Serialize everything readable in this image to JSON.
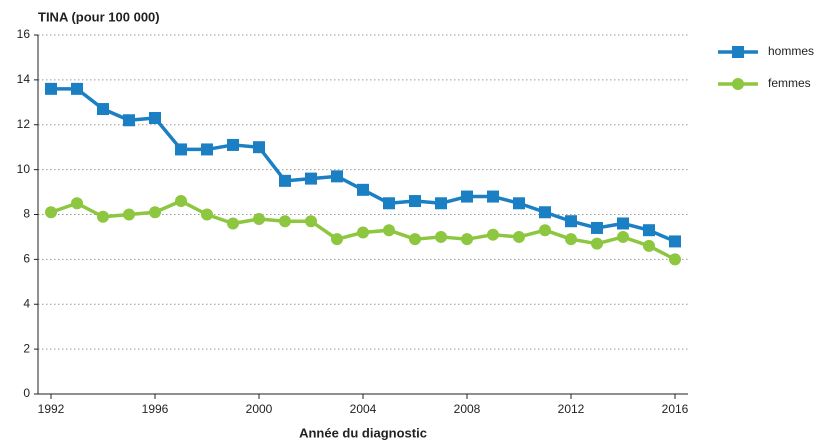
{
  "chart_data": {
    "type": "line",
    "ylabel": "TINA (pour 100 000)",
    "xlabel": "Année du diagnostic",
    "x": [
      1992,
      1993,
      1994,
      1995,
      1996,
      1997,
      1998,
      1999,
      2000,
      2001,
      2002,
      2003,
      2004,
      2005,
      2006,
      2007,
      2008,
      2009,
      2010,
      2011,
      2012,
      2013,
      2014,
      2015,
      2016
    ],
    "series": [
      {
        "name": "hommes",
        "color": "#1b7fc4",
        "marker": "square",
        "values": [
          13.6,
          13.6,
          12.7,
          12.2,
          12.3,
          10.9,
          10.9,
          11.1,
          11.0,
          9.5,
          9.6,
          9.7,
          9.1,
          8.5,
          8.6,
          8.5,
          8.8,
          8.8,
          8.5,
          8.1,
          7.7,
          7.4,
          7.6,
          7.3,
          6.8
        ]
      },
      {
        "name": "femmes",
        "color": "#8dc63f",
        "marker": "circle",
        "values": [
          8.1,
          8.5,
          7.9,
          8.0,
          8.1,
          8.6,
          8.0,
          7.6,
          7.8,
          7.7,
          7.7,
          6.9,
          7.2,
          7.3,
          6.9,
          7.0,
          6.9,
          7.1,
          7.0,
          7.3,
          6.9,
          6.7,
          7.0,
          6.6,
          6.0
        ]
      }
    ],
    "xlim": [
      1991.5,
      2016.5
    ],
    "xticks": [
      1992,
      1996,
      2000,
      2004,
      2008,
      2012,
      2016
    ],
    "ylim": [
      0,
      16
    ],
    "yticks": [
      0,
      2,
      4,
      6,
      8,
      10,
      12,
      14,
      16
    ],
    "grid": true,
    "legend": "right"
  }
}
